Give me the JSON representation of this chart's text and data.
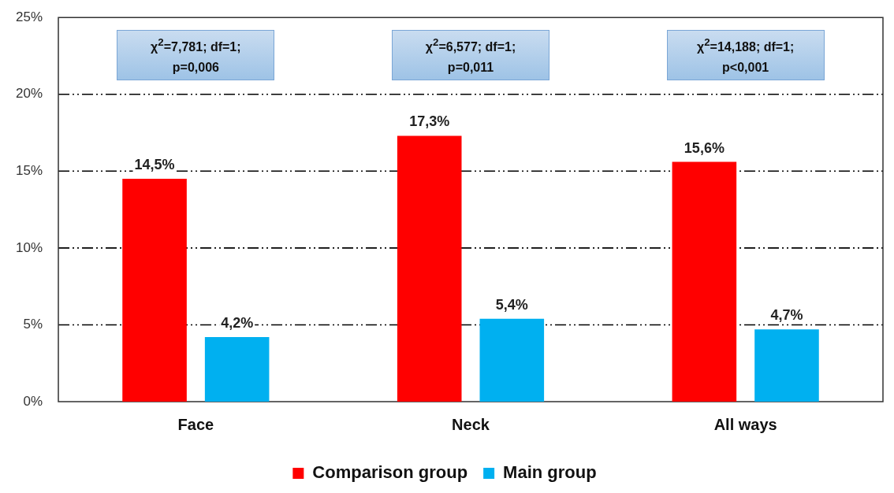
{
  "chart_data": {
    "type": "bar",
    "categories": [
      "Face",
      "Neck",
      "All ways"
    ],
    "series": [
      {
        "name": "Comparison group",
        "color": "#ff0000",
        "values": [
          14.5,
          17.3,
          15.6
        ],
        "value_labels": [
          "14,5%",
          "17,3%",
          "15,6%"
        ]
      },
      {
        "name": "Main group",
        "color": "#00b0f0",
        "values": [
          4.2,
          5.4,
          4.7
        ],
        "value_labels": [
          "4,2%",
          "5,4%",
          "4,7%"
        ]
      }
    ],
    "ylim": [
      0,
      25
    ],
    "yticks": [
      {
        "value": 0,
        "label": "0%"
      },
      {
        "value": 5,
        "label": "5%"
      },
      {
        "value": 10,
        "label": "10%"
      },
      {
        "value": 15,
        "label": "15%"
      },
      {
        "value": 20,
        "label": "20%"
      },
      {
        "value": 25,
        "label": "25%"
      }
    ],
    "grid": "y",
    "legend": "bottom",
    "annotations": [
      "χ$^{2}$=7,781; df=1; p=0,006",
      "χ$^{2}$=6,577; df=1; p=0,011",
      "χ$^{2}$=14,188; df=1; p<0,001"
    ]
  }
}
